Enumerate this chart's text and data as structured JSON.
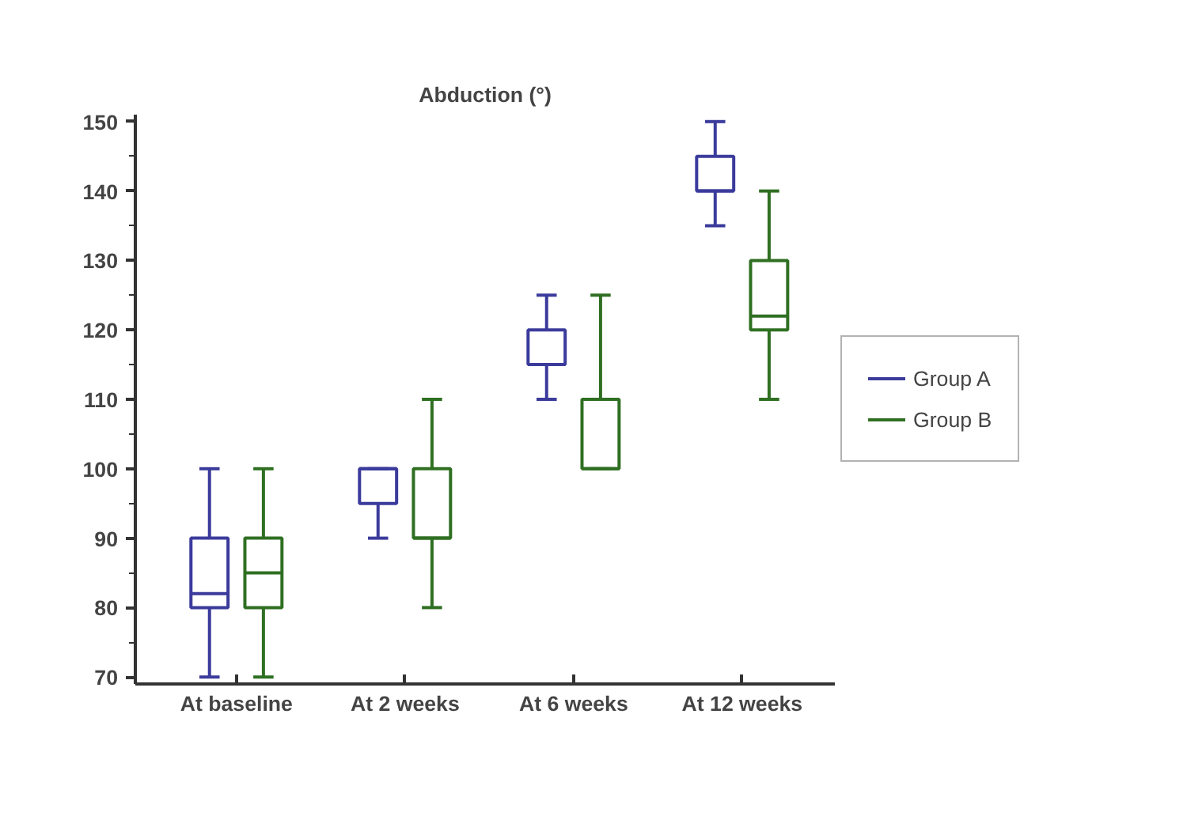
{
  "chart_data": {
    "type": "box",
    "title": "Abduction (°)",
    "categories": [
      "At baseline",
      "At 2 weeks",
      "At 6 weeks",
      "At 12 weeks"
    ],
    "series": [
      {
        "name": "Group A",
        "color": "#3b3b9c",
        "boxes": [
          {
            "low": 70,
            "q1": 80,
            "median": 82,
            "q3": 90,
            "high": 100
          },
          {
            "low": 90,
            "q1": 95,
            "median": 100,
            "q3": 100,
            "high": 100
          },
          {
            "low": 110,
            "q1": 115,
            "median": 115,
            "q3": 120,
            "high": 125
          },
          {
            "low": 135,
            "q1": 140,
            "median": 140,
            "q3": 145,
            "high": 150
          }
        ]
      },
      {
        "name": "Group B",
        "color": "#2f6f22",
        "boxes": [
          {
            "low": 70,
            "q1": 80,
            "median": 85,
            "q3": 90,
            "high": 100
          },
          {
            "low": 80,
            "q1": 90,
            "median": 90,
            "q3": 100,
            "high": 110
          },
          {
            "low": 100,
            "q1": 100,
            "median": 100,
            "q3": 110,
            "high": 125
          },
          {
            "low": 110,
            "q1": 120,
            "median": 122,
            "q3": 130,
            "high": 140
          }
        ]
      }
    ],
    "ylim": [
      69,
      151
    ],
    "yticks": [
      70,
      {
        "value": 75,
        "label": null
      },
      80,
      {
        "value": 85,
        "label": null
      },
      90,
      {
        "value": 95,
        "label": null
      },
      100,
      {
        "value": 105,
        "label": null
      },
      110,
      {
        "value": 115,
        "label": null
      },
      120,
      {
        "value": 125,
        "label": null
      },
      130,
      {
        "value": 135,
        "label": null
      },
      140,
      {
        "value": 145,
        "label": null
      },
      150
    ],
    "grid": false,
    "legend": "right"
  }
}
